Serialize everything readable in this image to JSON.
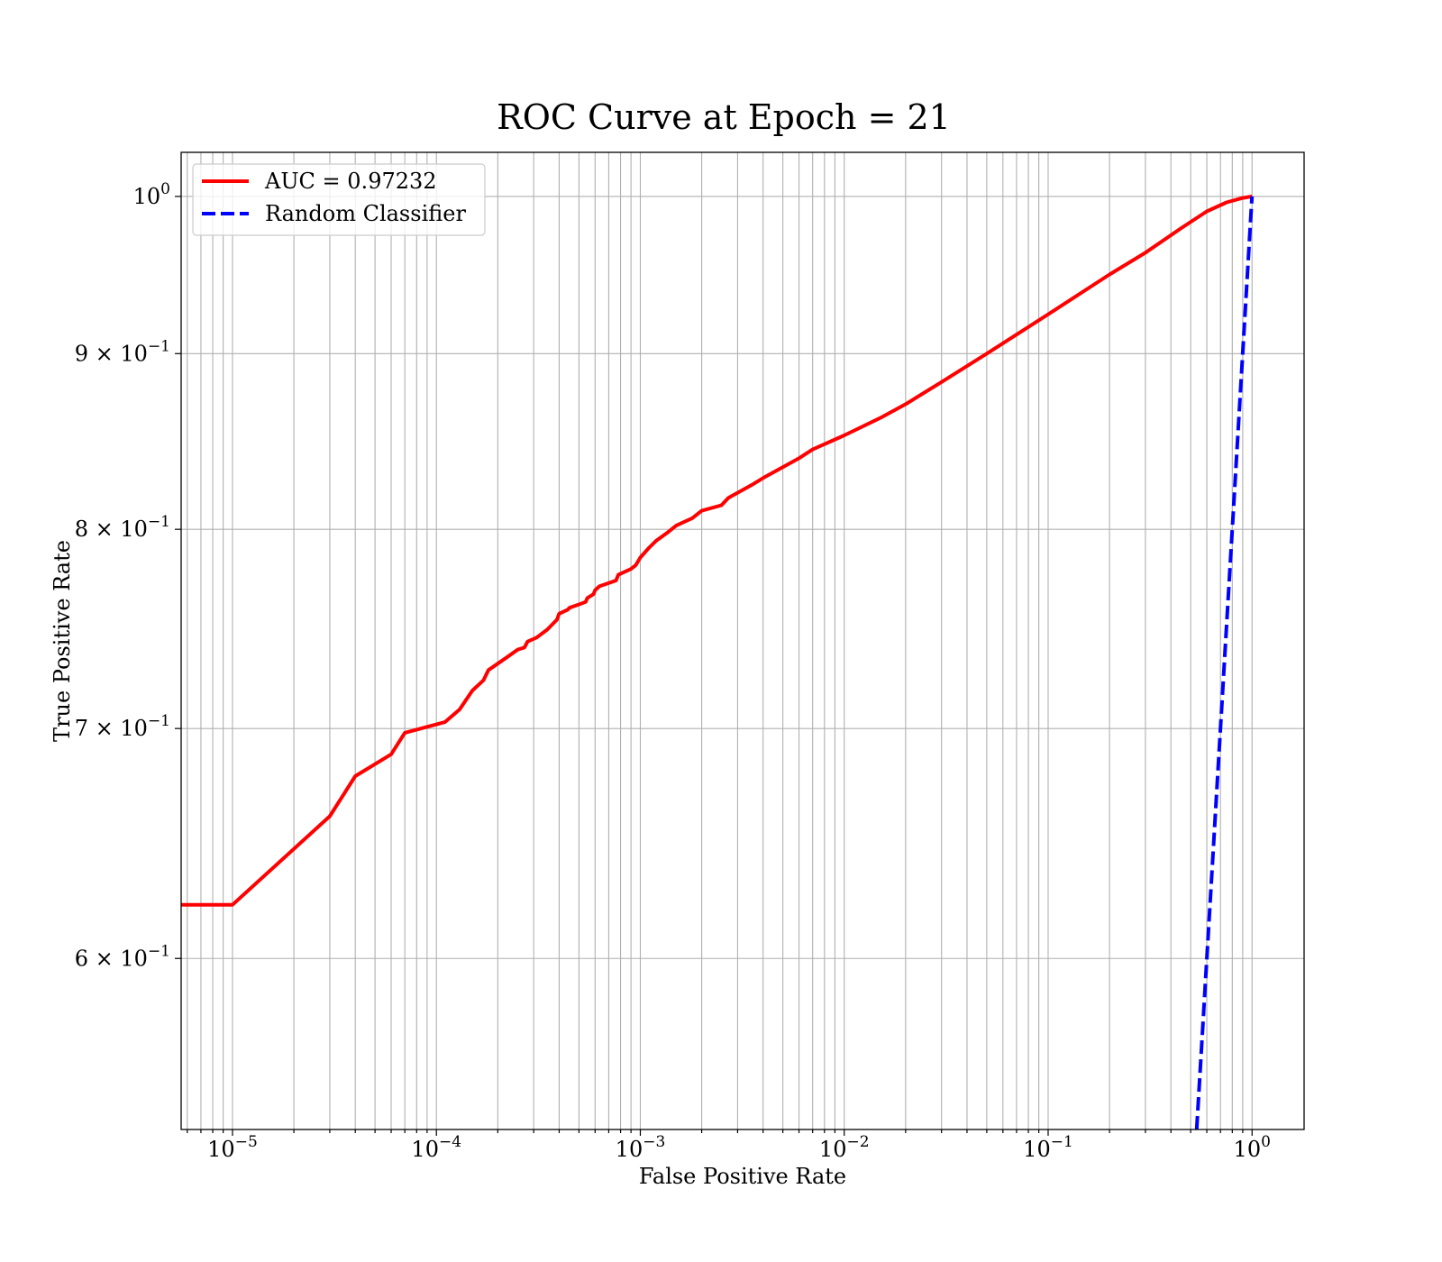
{
  "chart_data": {
    "type": "line",
    "title": "ROC Curve at Epoch = 21",
    "xlabel": "False Positive Rate",
    "ylabel": "True Positive Rate",
    "xscale": "log",
    "yscale": "log",
    "xlim": [
      5.6e-06,
      1.8
    ],
    "ylim": [
      0.535,
      1.03
    ],
    "grid": "both",
    "legend_position": "upper-left",
    "x_ticks": [
      {
        "value": 1e-05,
        "base": "10",
        "exp": "−5"
      },
      {
        "value": 0.0001,
        "base": "10",
        "exp": "−4"
      },
      {
        "value": 0.001,
        "base": "10",
        "exp": "−3"
      },
      {
        "value": 0.01,
        "base": "10",
        "exp": "−2"
      },
      {
        "value": 0.1,
        "base": "10",
        "exp": "−1"
      },
      {
        "value": 1,
        "base": "10",
        "exp": "0"
      }
    ],
    "y_ticks": [
      {
        "value": 0.6,
        "prefix": "6 × 10",
        "exp": "−1"
      },
      {
        "value": 0.7,
        "prefix": "7 × 10",
        "exp": "−1"
      },
      {
        "value": 0.8,
        "prefix": "8 × 10",
        "exp": "−1"
      },
      {
        "value": 0.9,
        "prefix": "9 × 10",
        "exp": "−1"
      },
      {
        "value": 1.0,
        "prefix": "10",
        "exp": "0"
      }
    ],
    "series": [
      {
        "name": "AUC = 0.97232",
        "color": "#ff0000",
        "style": "solid",
        "x": [
          5.6e-06,
          1e-05,
          3e-05,
          4e-05,
          6e-05,
          7e-05,
          0.00011,
          0.00013,
          0.00015,
          0.00017,
          0.00018,
          0.00022,
          0.00025,
          0.00027,
          0.00028,
          0.00031,
          0.00035,
          0.00039,
          0.0004,
          0.00044,
          0.00045,
          0.00051,
          0.00054,
          0.00055,
          0.00059,
          0.0006,
          0.00063,
          0.00076,
          0.00078,
          0.0009,
          0.00095,
          0.001,
          0.0011,
          0.0012,
          0.00135,
          0.0015,
          0.0018,
          0.002,
          0.0025,
          0.0027,
          0.0035,
          0.004,
          0.005,
          0.006,
          0.007,
          0.01,
          0.015,
          0.02,
          0.03,
          0.05,
          0.1,
          0.2,
          0.3,
          0.45,
          0.6,
          0.75,
          0.9,
          1.0
        ],
        "y": [
          0.622,
          0.622,
          0.66,
          0.678,
          0.688,
          0.698,
          0.703,
          0.709,
          0.718,
          0.723,
          0.728,
          0.734,
          0.738,
          0.739,
          0.742,
          0.744,
          0.748,
          0.753,
          0.756,
          0.758,
          0.759,
          0.761,
          0.762,
          0.764,
          0.766,
          0.768,
          0.77,
          0.773,
          0.776,
          0.779,
          0.781,
          0.785,
          0.79,
          0.794,
          0.798,
          0.802,
          0.806,
          0.81,
          0.813,
          0.817,
          0.824,
          0.828,
          0.834,
          0.839,
          0.844,
          0.852,
          0.862,
          0.87,
          0.883,
          0.9,
          0.924,
          0.949,
          0.963,
          0.979,
          0.99,
          0.996,
          0.999,
          1.0
        ]
      },
      {
        "name": "Random Classifier",
        "color": "#0000ff",
        "style": "dashed",
        "x": [
          0.535,
          1.0
        ],
        "y": [
          0.535,
          1.0
        ]
      }
    ]
  }
}
